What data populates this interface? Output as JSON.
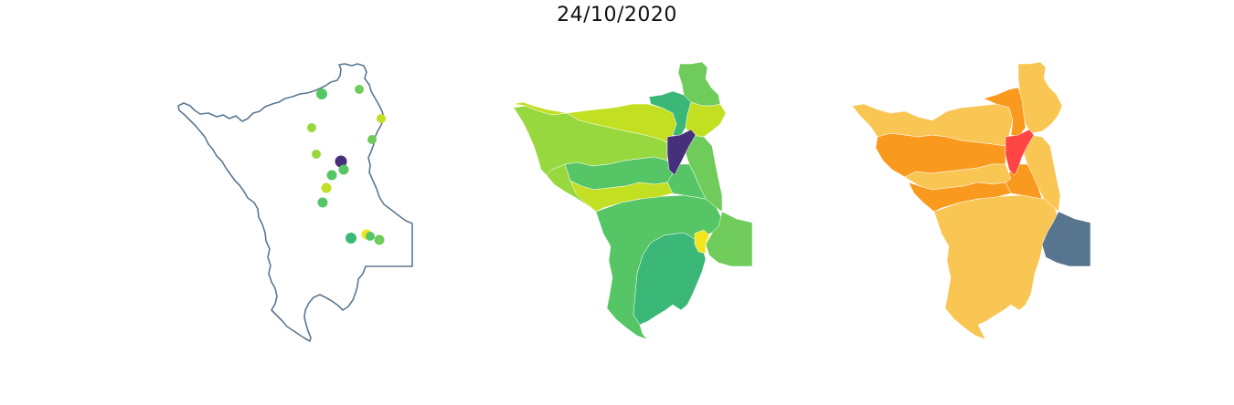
{
  "title": "24/10/2020",
  "colors": {
    "outline": "#5b7890",
    "viridis_purple": "#47307b",
    "viridis_teal": "#3bb878",
    "viridis_green": "#55c566",
    "viridis_lightgreen": "#6fcc5b",
    "viridis_lime": "#97d83f",
    "viridis_yellowgreen": "#c2df22",
    "viridis_yellow": "#f1e51d",
    "warm_light": "#f9c553",
    "warm_orange": "#f99a1f",
    "warm_red": "#ff4444",
    "warm_slate": "#587590"
  },
  "points": [
    {
      "lon": 0.0,
      "lat": 0.0,
      "color": "#55c566"
    },
    {
      "lon": 0.0,
      "lat": 0.0,
      "color": "#6fcc5b"
    },
    {
      "lon": 0.0,
      "lat": 0.0,
      "color": "#c2df22"
    },
    {
      "lon": 0.0,
      "lat": 0.0,
      "color": "#97d83f"
    },
    {
      "lon": 0.0,
      "lat": 0.0,
      "color": "#6fcc5b"
    },
    {
      "lon": 0.0,
      "lat": 0.0,
      "color": "#97d83f"
    },
    {
      "lon": 0.0,
      "lat": 0.0,
      "color": "#47307b"
    },
    {
      "lon": 0.0,
      "lat": 0.0,
      "color": "#55c566"
    },
    {
      "lon": 0.0,
      "lat": 0.0,
      "color": "#55c566"
    },
    {
      "lon": 0.0,
      "lat": 0.0,
      "color": "#c2df22"
    },
    {
      "lon": 0.0,
      "lat": 0.0,
      "color": "#55c566"
    },
    {
      "lon": 0.0,
      "lat": 0.0,
      "color": "#3bb878"
    },
    {
      "lon": 0.0,
      "lat": 0.0,
      "color": "#f1e51d"
    },
    {
      "lon": 0.0,
      "lat": 0.0,
      "color": "#6fcc5b"
    },
    {
      "lon": 0.0,
      "lat": 0.0,
      "color": "#55c566"
    }
  ]
}
